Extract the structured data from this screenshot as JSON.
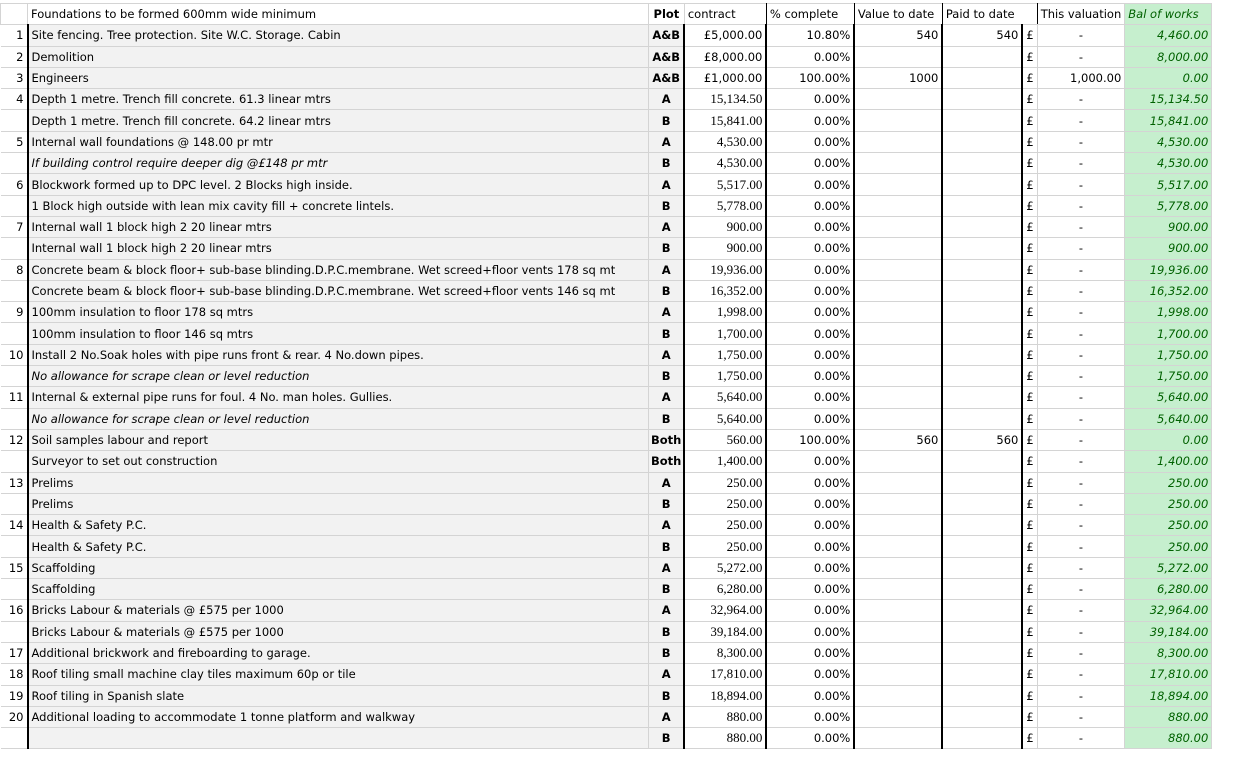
{
  "header": {
    "description": "Foundations to be formed 600mm wide minimum",
    "plot": "Plot",
    "contract": "contract",
    "pct": "% complete",
    "value": "Value to date",
    "paid": "Paid to date",
    "valuation": "This valuation",
    "bal": "Bal of works"
  },
  "currency_symbol": "£",
  "colors": {
    "cell_fill": "#f2f2f2",
    "bal_fill": "#c6efce",
    "bal_text": "#006100"
  },
  "rows": [
    {
      "n": "1",
      "desc": "Site fencing. Tree protection. Site W.C. Storage. Cabin",
      "plot": "A&B",
      "contract": "£5,000.00",
      "pct": "10.80%",
      "value": "540",
      "paid": "540",
      "val": "-",
      "bal": "4,460.00",
      "g": 1
    },
    {
      "n": "2",
      "desc": "Demolition",
      "plot": "A&B",
      "contract": "£8,000.00",
      "pct": "0.00%",
      "value": "",
      "paid": "",
      "val": "-",
      "bal": "8,000.00",
      "g": 1
    },
    {
      "n": "3",
      "desc": "Engineers",
      "plot": "A&B",
      "contract": "£1,000.00",
      "pct": "100.00%",
      "value": "1000",
      "paid": "",
      "val": "1,000.00",
      "bal": "0.00",
      "g": 1
    },
    {
      "n": "4",
      "desc": "Depth 1 metre. Trench fill concrete. 61.3 linear mtrs",
      "plot": "A",
      "contract": "15,134.50",
      "pct": "0.00%",
      "value": "",
      "paid": "",
      "val": "-",
      "bal": "15,134.50",
      "g": 1
    },
    {
      "n": "",
      "desc": "Depth 1 metre. Trench fill concrete. 64.2 linear mtrs",
      "plot": "B",
      "contract": "15,841.00",
      "pct": "0.00%",
      "value": "",
      "paid": "",
      "val": "-",
      "bal": "15,841.00"
    },
    {
      "n": "5",
      "desc": "Internal wall foundations @ 148.00 pr mtr",
      "plot": "A",
      "contract": "4,530.00",
      "pct": "0.00%",
      "value": "",
      "paid": "",
      "val": "-",
      "bal": "4,530.00",
      "g": 1
    },
    {
      "n": "",
      "desc": "If building control require deeper dig @£148 pr mtr",
      "italic": true,
      "plot": "B",
      "contract": "4,530.00",
      "pct": "0.00%",
      "value": "",
      "paid": "",
      "val": "-",
      "bal": "4,530.00"
    },
    {
      "n": "6",
      "desc": "Blockwork formed up to DPC level. 2 Blocks high inside.",
      "plot": "A",
      "contract": "5,517.00",
      "pct": "0.00%",
      "value": "",
      "paid": "",
      "val": "-",
      "bal": "5,517.00",
      "g": 1
    },
    {
      "n": "",
      "desc": "1 Block high outside with lean mix cavity fill + concrete lintels.",
      "plot": "B",
      "contract": "5,778.00",
      "pct": "0.00%",
      "value": "",
      "paid": "",
      "val": "-",
      "bal": "5,778.00"
    },
    {
      "n": "7",
      "desc": "Internal wall 1 block high 2   20 linear mtrs",
      "plot": "A",
      "contract": "900.00",
      "pct": "0.00%",
      "value": "",
      "paid": "",
      "val": "-",
      "bal": "900.00",
      "g": 1
    },
    {
      "n": "",
      "desc": "Internal wall 1 block high 2   20 linear mtrs",
      "plot": "B",
      "contract": "900.00",
      "pct": "0.00%",
      "value": "",
      "paid": "",
      "val": "-",
      "bal": "900.00"
    },
    {
      "n": "8",
      "desc": "Concrete beam & block floor+ sub-base blinding.D.P.C.membrane. Wet screed+floor vents 178 sq mt",
      "plot": "A",
      "contract": "19,936.00",
      "pct": "0.00%",
      "value": "",
      "paid": "",
      "val": "-",
      "bal": "19,936.00",
      "g": 1
    },
    {
      "n": "",
      "desc": "Concrete beam & block floor+ sub-base blinding.D.P.C.membrane. Wet screed+floor vents 146 sq mt",
      "plot": "B",
      "contract": "16,352.00",
      "pct": "0.00%",
      "value": "",
      "paid": "",
      "val": "-",
      "bal": "16,352.00"
    },
    {
      "n": "9",
      "desc": "100mm insulation to floor 178 sq mtrs",
      "plot": "A",
      "contract": "1,998.00",
      "pct": "0.00%",
      "value": "",
      "paid": "",
      "val": "-",
      "bal": "1,998.00",
      "g": 1
    },
    {
      "n": "",
      "desc": "100mm insulation to floor 146 sq mtrs",
      "plot": "B",
      "contract": "1,700.00",
      "pct": "0.00%",
      "value": "",
      "paid": "",
      "val": "-",
      "bal": "1,700.00"
    },
    {
      "n": "10",
      "desc": "Install 2 No.Soak holes with pipe runs front & rear. 4 No.down pipes.",
      "plot": "A",
      "contract": "1,750.00",
      "pct": "0.00%",
      "value": "",
      "paid": "",
      "val": "-",
      "bal": "1,750.00",
      "g": 1
    },
    {
      "n": "",
      "desc": "No allowance for scrape clean or level reduction",
      "italic": true,
      "plot": "B",
      "contract": "1,750.00",
      "pct": "0.00%",
      "value": "",
      "paid": "",
      "val": "-",
      "bal": "1,750.00"
    },
    {
      "n": "11",
      "desc": "Internal & external pipe runs for foul. 4 No. man holes. Gullies.",
      "plot": "A",
      "contract": "5,640.00",
      "pct": "0.00%",
      "value": "",
      "paid": "",
      "val": "-",
      "bal": "5,640.00",
      "g": 1
    },
    {
      "n": "",
      "desc": "No allowance for scrape clean or level reduction",
      "italic": true,
      "plot": "B",
      "contract": "5,640.00",
      "pct": "0.00%",
      "value": "",
      "paid": "",
      "val": "-",
      "bal": "5,640.00"
    },
    {
      "n": "12",
      "desc": "Soil samples labour and report",
      "plot": "Both",
      "contract": "560.00",
      "pct": "100.00%",
      "value": "560",
      "paid": "560",
      "val": "-",
      "bal": "0.00",
      "g": 1
    },
    {
      "n": "",
      "desc": "Surveyor to set out construction",
      "plot": "Both",
      "contract": "1,400.00",
      "pct": "0.00%",
      "value": "",
      "paid": "",
      "val": "-",
      "bal": "1,400.00"
    },
    {
      "n": "13",
      "desc": "Prelims",
      "plot": "A",
      "contract": "250.00",
      "pct": "0.00%",
      "value": "",
      "paid": "",
      "val": "-",
      "bal": "250.00",
      "g": 1
    },
    {
      "n": "",
      "desc": "Prelims",
      "plot": "B",
      "contract": "250.00",
      "pct": "0.00%",
      "value": "",
      "paid": "",
      "val": "-",
      "bal": "250.00"
    },
    {
      "n": "14",
      "desc": "Health & Safety P.C.",
      "plot": "A",
      "contract": "250.00",
      "pct": "0.00%",
      "value": "",
      "paid": "",
      "val": "-",
      "bal": "250.00",
      "g": 1
    },
    {
      "n": "",
      "desc": "Health & Safety P.C.",
      "plot": "B",
      "contract": "250.00",
      "pct": "0.00%",
      "value": "",
      "paid": "",
      "val": "-",
      "bal": "250.00"
    },
    {
      "n": "15",
      "desc": "Scaffolding",
      "plot": "A",
      "contract": "5,272.00",
      "pct": "0.00%",
      "value": "",
      "paid": "",
      "val": "-",
      "bal": "5,272.00",
      "g": 1
    },
    {
      "n": "",
      "desc": "Scaffolding",
      "plot": "B",
      "contract": "6,280.00",
      "pct": "0.00%",
      "value": "",
      "paid": "",
      "val": "-",
      "bal": "6,280.00"
    },
    {
      "n": "16",
      "desc": "Bricks Labour & materials  @ £575 per 1000",
      "plot": "A",
      "contract": "32,964.00",
      "pct": "0.00%",
      "value": "",
      "paid": "",
      "val": "-",
      "bal": "32,964.00",
      "g": 1
    },
    {
      "n": "",
      "desc": "Bricks Labour & materials  @ £575 per 1000",
      "plot": "B",
      "contract": "39,184.00",
      "pct": "0.00%",
      "value": "",
      "paid": "",
      "val": "-",
      "bal": "39,184.00"
    },
    {
      "n": "17",
      "desc": "Additional brickwork and fireboarding to garage.",
      "plot": "B",
      "contract": "8,300.00",
      "pct": "0.00%",
      "value": "",
      "paid": "",
      "val": "-",
      "bal": "8,300.00",
      "g": 1
    },
    {
      "n": "18",
      "desc": "Roof tiling small machine clay tiles maximum 60p or tile",
      "plot": "A",
      "contract": "17,810.00",
      "pct": "0.00%",
      "value": "",
      "paid": "",
      "val": "-",
      "bal": "17,810.00",
      "g": 1
    },
    {
      "n": "19",
      "desc": "Roof tiling in Spanish slate",
      "plot": "B",
      "contract": "18,894.00",
      "pct": "0.00%",
      "value": "",
      "paid": "",
      "val": "-",
      "bal": "18,894.00",
      "g": 1
    },
    {
      "n": "20",
      "desc": "Additional loading to accommodate 1 tonne platform and walkway",
      "plot": "A",
      "contract": "880.00",
      "pct": "0.00%",
      "value": "",
      "paid": "",
      "val": "-",
      "bal": "880.00",
      "g": 1
    },
    {
      "n": "",
      "desc": "",
      "plot": "B",
      "contract": "880.00",
      "pct": "0.00%",
      "value": "",
      "paid": "",
      "val": "-",
      "bal": "880.00"
    }
  ]
}
